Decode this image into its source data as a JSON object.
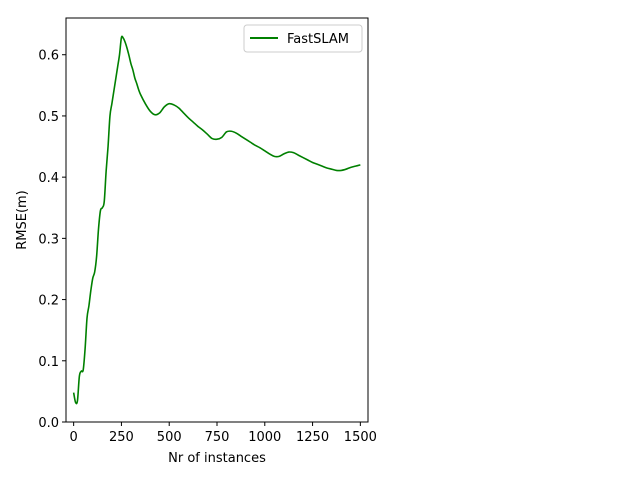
{
  "chart_data": {
    "type": "line",
    "xlabel": "Nr of instances",
    "ylabel": "RMSE(m)",
    "xlim": [
      -40,
      1540
    ],
    "ylim": [
      0,
      0.66
    ],
    "xticks": [
      0,
      250,
      500,
      750,
      1000,
      1250,
      1500
    ],
    "xtick_labels": [
      "0",
      "250",
      "500",
      "750",
      "1000",
      "1250",
      "1500"
    ],
    "yticks": [
      0.0,
      0.1,
      0.2,
      0.3,
      0.4,
      0.5,
      0.6
    ],
    "ytick_labels": [
      "0.0",
      "0.1",
      "0.2",
      "0.3",
      "0.4",
      "0.5",
      "0.6"
    ],
    "legend_position": "top-right",
    "grid": false,
    "series": [
      {
        "name": "FastSLAM",
        "color": "#008000",
        "x": [
          0,
          10,
          20,
          30,
          40,
          50,
          60,
          70,
          80,
          90,
          100,
          110,
          120,
          130,
          140,
          150,
          160,
          170,
          180,
          190,
          200,
          210,
          220,
          230,
          240,
          250,
          260,
          270,
          280,
          290,
          300,
          310,
          320,
          330,
          340,
          350,
          375,
          400,
          425,
          450,
          475,
          500,
          525,
          550,
          575,
          600,
          625,
          650,
          675,
          700,
          725,
          750,
          775,
          800,
          825,
          850,
          875,
          900,
          925,
          950,
          975,
          1000,
          1025,
          1050,
          1075,
          1100,
          1125,
          1150,
          1175,
          1200,
          1225,
          1250,
          1275,
          1300,
          1325,
          1350,
          1375,
          1400,
          1425,
          1450,
          1475,
          1500
        ],
        "y": [
          0.048,
          0.032,
          0.035,
          0.075,
          0.083,
          0.085,
          0.12,
          0.17,
          0.19,
          0.215,
          0.235,
          0.245,
          0.27,
          0.315,
          0.345,
          0.35,
          0.36,
          0.41,
          0.45,
          0.5,
          0.52,
          0.54,
          0.56,
          0.58,
          0.6,
          0.628,
          0.627,
          0.62,
          0.61,
          0.598,
          0.585,
          0.575,
          0.562,
          0.553,
          0.543,
          0.535,
          0.52,
          0.508,
          0.502,
          0.505,
          0.515,
          0.52,
          0.518,
          0.513,
          0.505,
          0.497,
          0.49,
          0.483,
          0.477,
          0.47,
          0.463,
          0.462,
          0.465,
          0.474,
          0.475,
          0.472,
          0.467,
          0.462,
          0.457,
          0.452,
          0.448,
          0.443,
          0.438,
          0.434,
          0.434,
          0.438,
          0.441,
          0.44,
          0.436,
          0.432,
          0.428,
          0.424,
          0.421,
          0.418,
          0.415,
          0.413,
          0.411,
          0.411,
          0.413,
          0.416,
          0.418,
          0.42
        ]
      }
    ]
  }
}
